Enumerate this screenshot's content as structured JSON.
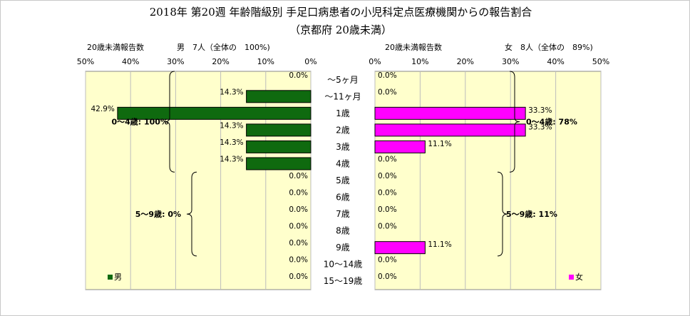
{
  "title_line1": "2018年 第20週 年齢階級別 手足口病患者の小児科定点医療機関からの報告割合",
  "title_line2": "（京都府 20歳未満）",
  "colors": {
    "male": "#0f6a0f",
    "female": "#ff00ff",
    "plot_bg": "#ffffcc",
    "grid": "#bdbdbd"
  },
  "chart_data": {
    "type": "bar",
    "orientation": "horizontal-butterfly",
    "categories": [
      "～5ヶ月",
      "～11ヶ月",
      "1歳",
      "2歳",
      "3歳",
      "4歳",
      "5歳",
      "6歳",
      "7歳",
      "8歳",
      "9歳",
      "10～14歳",
      "15～19歳"
    ],
    "xlim": [
      0,
      50
    ],
    "ticks": [
      50,
      40,
      30,
      20,
      10,
      0
    ],
    "tick_labels": [
      "50%",
      "40%",
      "30%",
      "20%",
      "10%",
      "0%"
    ],
    "grid": true,
    "series": [
      {
        "name": "男",
        "side": "left",
        "axis_title": "20歳未満報告数",
        "summary": "男　7人（全体の　100%)",
        "values": [
          0,
          14.3,
          42.9,
          14.3,
          14.3,
          14.3,
          0,
          0,
          0,
          0,
          0,
          0,
          0
        ],
        "labels": [
          "0.0%",
          "14.3%",
          "42.9%",
          "14.3%",
          "14.3%",
          "14.3%",
          "0.0%",
          "0.0%",
          "0.0%",
          "0.0%",
          "0.0%",
          "0.0%",
          "0.0%"
        ],
        "legend": "男",
        "groups": [
          {
            "label": "0～4歳: 100%",
            "from": 0,
            "to": 5
          },
          {
            "label": "5～9歳: 0%",
            "from": 6,
            "to": 10
          }
        ]
      },
      {
        "name": "女",
        "side": "right",
        "axis_title": "20歳未満報告数",
        "summary": "女　8人（全体の　89%)",
        "values": [
          0,
          0,
          33.3,
          33.3,
          11.1,
          0,
          0,
          0,
          0,
          0,
          11.1,
          0,
          0
        ],
        "labels": [
          "0.0%",
          "0.0%",
          "33.3%",
          "33.3%",
          "11.1%",
          "0.0%",
          "0.0%",
          "0.0%",
          "0.0%",
          "0.0%",
          "11.1%",
          "0.0%",
          "0.0%"
        ],
        "legend": "女",
        "groups": [
          {
            "label": "0～4歳: 78%",
            "from": 0,
            "to": 5
          },
          {
            "label": "5～9歳: 11%",
            "from": 6,
            "to": 10
          }
        ]
      }
    ]
  }
}
